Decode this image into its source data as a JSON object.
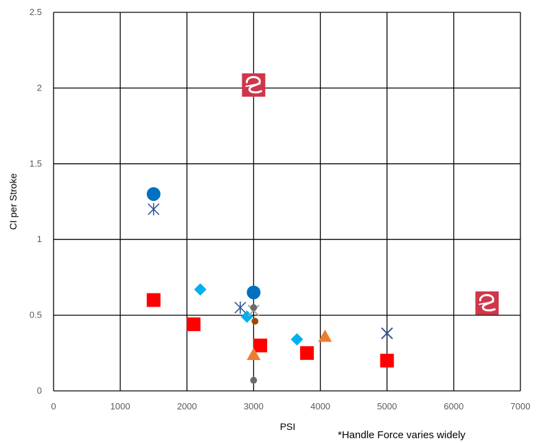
{
  "chart_data": {
    "type": "scatter",
    "title": "",
    "xlabel": "PSI",
    "ylabel": "CI per Stroke",
    "xlim": [
      0,
      7000
    ],
    "ylim": [
      0,
      2.5
    ],
    "x_ticks": [
      "0",
      "1000",
      "2000",
      "3000",
      "4000",
      "5000",
      "6000",
      "7000"
    ],
    "y_ticks": [
      "0",
      "0.5",
      "1",
      "1.5",
      "2",
      "2.5"
    ],
    "x_tick_values": [
      0,
      1000,
      2000,
      3000,
      4000,
      5000,
      6000,
      7000
    ],
    "y_tick_values": [
      0,
      0.5,
      1,
      1.5,
      2,
      2.5
    ],
    "grid": true,
    "series": [
      {
        "marker": "square",
        "color": "#ff0000",
        "points": [
          [
            1500,
            0.6
          ],
          [
            2100,
            0.44
          ],
          [
            3100,
            0.3
          ],
          [
            3800,
            0.25
          ],
          [
            5000,
            0.2
          ]
        ]
      },
      {
        "marker": "circle",
        "color": "#0070c0",
        "points": [
          [
            1500,
            1.3
          ],
          [
            3000,
            0.65
          ]
        ]
      },
      {
        "marker": "asterisk",
        "color": "#2f5597",
        "points": [
          [
            1500,
            1.2
          ],
          [
            2800,
            0.55
          ]
        ]
      },
      {
        "marker": "x",
        "color": "#2f5597",
        "points": [
          [
            5000,
            0.38
          ]
        ]
      },
      {
        "marker": "diamond",
        "color": "#00b0f0",
        "points": [
          [
            2200,
            0.67
          ],
          [
            2900,
            0.49
          ],
          [
            3650,
            0.34
          ]
        ]
      },
      {
        "marker": "triangle",
        "color": "#ed7d31",
        "points": [
          [
            3000,
            0.24
          ],
          [
            4070,
            0.36
          ]
        ]
      },
      {
        "marker": "x",
        "color": "#a5a5a5",
        "points": [
          [
            3000,
            0.53
          ]
        ]
      },
      {
        "marker": "small-circle",
        "color": "#6b6b6b",
        "points": [
          [
            3000,
            0.55
          ],
          [
            3000,
            0.07
          ]
        ]
      },
      {
        "marker": "small-circle",
        "color": "#9c4a09",
        "points": [
          [
            3020,
            0.46
          ]
        ]
      },
      {
        "marker": "logo",
        "color": "#d0364a",
        "points": [
          [
            3000,
            2.02
          ],
          [
            6500,
            0.58
          ]
        ]
      }
    ],
    "footnote": "*Handle Force varies widely"
  }
}
